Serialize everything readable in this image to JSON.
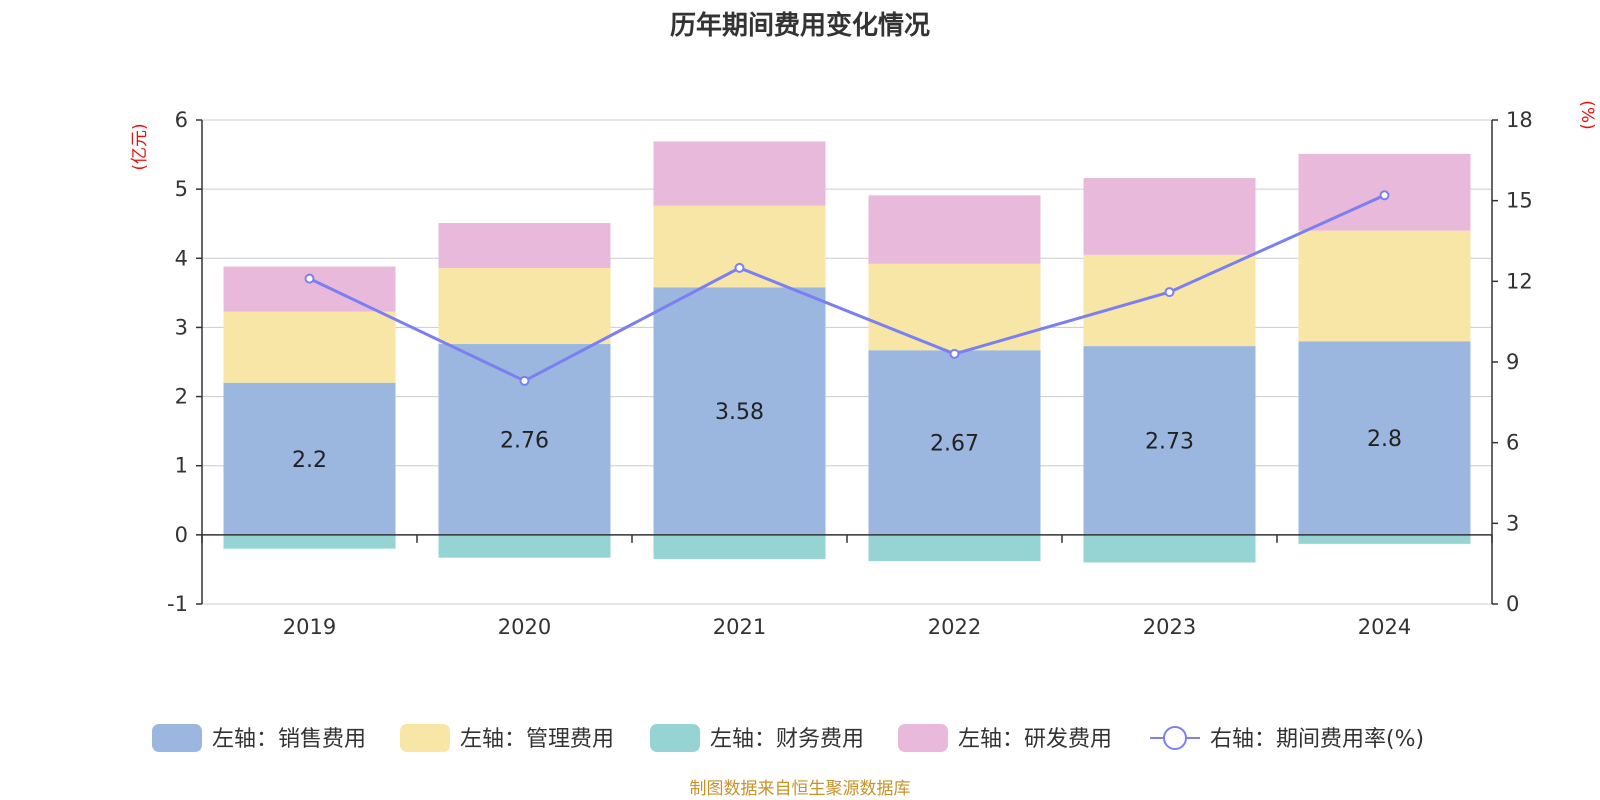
{
  "chart_data": {
    "type": "bar",
    "title": "历年期间费用变化情况",
    "categories": [
      "2019",
      "2020",
      "2021",
      "2022",
      "2023",
      "2024"
    ],
    "left_axis": {
      "unit": "(亿元)",
      "ylim": [
        -1,
        6
      ],
      "ticks": [
        -1,
        0,
        1,
        2,
        3,
        4,
        5,
        6
      ]
    },
    "right_axis": {
      "unit": "(%)",
      "ylim": [
        0,
        18
      ],
      "ticks": [
        0,
        3,
        6,
        9,
        12,
        15,
        18
      ]
    },
    "series": [
      {
        "name": "左轴：销售费用",
        "axis": "left",
        "type": "bar",
        "color": "#9bb7e0",
        "values": [
          2.2,
          2.76,
          3.58,
          2.67,
          2.73,
          2.8
        ],
        "show_labels": true
      },
      {
        "name": "左轴：管理费用",
        "axis": "left",
        "type": "bar",
        "color": "#f7e6a6",
        "values": [
          1.03,
          1.1,
          1.18,
          1.25,
          1.32,
          1.6
        ],
        "show_labels": false
      },
      {
        "name": "左轴：财务费用",
        "axis": "left",
        "type": "bar",
        "color": "#96d4d4",
        "values": [
          -0.2,
          -0.33,
          -0.35,
          -0.38,
          -0.4,
          -0.13
        ],
        "show_labels": false
      },
      {
        "name": "左轴：研发费用",
        "axis": "left",
        "type": "bar",
        "color": "#e8b9da",
        "values": [
          0.65,
          0.65,
          0.93,
          0.99,
          1.11,
          1.11
        ],
        "show_labels": false
      },
      {
        "name": "右轴：期间费用率(%)",
        "axis": "right",
        "type": "line",
        "color": "#7b7ff0",
        "values": [
          12.1,
          8.3,
          12.5,
          9.3,
          11.6,
          15.2
        ]
      }
    ],
    "legend_position": "bottom"
  },
  "source_note": "制图数据来自恒生聚源数据库",
  "colors": {
    "axis_unit": "#e8100e",
    "source": "#c8922a",
    "grid": "#cccccc",
    "axis": "#333333"
  }
}
